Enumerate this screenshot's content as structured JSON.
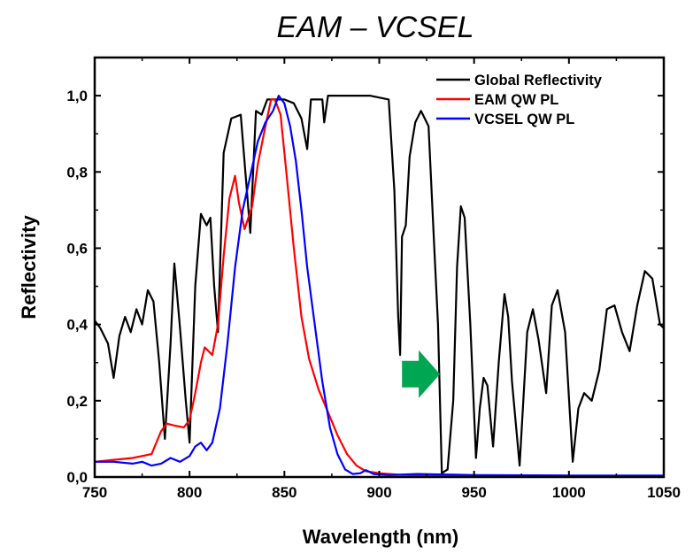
{
  "chart_data": {
    "type": "line",
    "title": "EAM – VCSEL",
    "xlabel": "Wavelength (nm)",
    "ylabel": "Reflectivity",
    "xlim": [
      750,
      1050
    ],
    "ylim": [
      0,
      1.1
    ],
    "x_ticks": [
      750,
      800,
      850,
      900,
      950,
      1000,
      1050
    ],
    "x_tick_labels": [
      "750",
      "800",
      "850",
      "900",
      "950",
      "1000",
      "1050"
    ],
    "y_ticks": [
      0,
      0.2,
      0.4,
      0.6,
      0.8,
      1.0
    ],
    "y_tick_labels": [
      "0,0",
      "0,2",
      "0,4",
      "0,6",
      "0,8",
      "1,0"
    ],
    "grid": false,
    "legend_position": "top-right",
    "annotation": {
      "type": "arrow",
      "direction": "right",
      "color": "#00a651",
      "x_from": 912,
      "x_to": 932,
      "y": 0.27
    },
    "series": [
      {
        "name": "Global Reflectivity",
        "color": "#000000",
        "x": [
          750,
          753,
          757,
          760,
          763,
          766,
          769,
          772,
          775,
          778,
          781,
          784,
          787,
          790,
          792,
          795,
          798,
          800,
          803,
          806,
          809,
          811,
          813,
          815,
          818,
          822,
          827,
          832,
          835,
          838,
          841,
          845,
          850,
          855,
          859,
          862,
          864,
          867,
          870,
          871,
          873,
          877,
          885,
          895,
          905,
          908,
          910,
          911,
          912,
          914,
          916,
          919,
          922,
          926,
          929,
          931,
          933,
          936,
          939,
          941,
          943,
          945,
          948,
          951,
          953,
          955,
          957,
          960,
          963,
          966,
          968,
          970,
          974,
          978,
          981,
          984,
          988,
          991,
          994,
          998,
          1002,
          1005,
          1008,
          1012,
          1016,
          1020,
          1024,
          1028,
          1032,
          1036,
          1040,
          1044,
          1048,
          1050
        ],
        "y": [
          0.41,
          0.39,
          0.35,
          0.26,
          0.37,
          0.42,
          0.38,
          0.44,
          0.4,
          0.49,
          0.46,
          0.3,
          0.1,
          0.35,
          0.56,
          0.39,
          0.2,
          0.09,
          0.5,
          0.69,
          0.66,
          0.68,
          0.5,
          0.38,
          0.85,
          0.94,
          0.95,
          0.64,
          0.96,
          0.95,
          0.99,
          0.99,
          0.99,
          0.98,
          0.94,
          0.86,
          0.99,
          0.99,
          0.99,
          0.93,
          1.0,
          1.0,
          1.0,
          1.0,
          0.99,
          0.75,
          0.42,
          0.32,
          0.63,
          0.66,
          0.84,
          0.93,
          0.96,
          0.92,
          0.6,
          0.4,
          0.01,
          0.02,
          0.2,
          0.55,
          0.71,
          0.68,
          0.4,
          0.05,
          0.18,
          0.26,
          0.24,
          0.08,
          0.3,
          0.48,
          0.42,
          0.25,
          0.03,
          0.38,
          0.44,
          0.36,
          0.22,
          0.45,
          0.49,
          0.38,
          0.04,
          0.18,
          0.22,
          0.2,
          0.28,
          0.44,
          0.45,
          0.38,
          0.33,
          0.45,
          0.54,
          0.52,
          0.4,
          0.39
        ]
      },
      {
        "name": "EAM QW PL",
        "color": "#ff0000",
        "x": [
          750,
          760,
          770,
          780,
          785,
          788,
          792,
          797,
          800,
          803,
          806,
          808,
          810,
          812,
          815,
          818,
          821,
          824,
          826,
          829,
          833,
          836,
          840,
          843,
          845,
          848,
          851,
          855,
          859,
          863,
          868,
          873,
          878,
          883,
          888,
          893,
          900,
          910,
          930,
          960,
          1000,
          1050
        ],
        "y": [
          0.04,
          0.045,
          0.05,
          0.06,
          0.12,
          0.14,
          0.135,
          0.13,
          0.15,
          0.22,
          0.3,
          0.34,
          0.33,
          0.32,
          0.4,
          0.58,
          0.73,
          0.79,
          0.72,
          0.65,
          0.71,
          0.82,
          0.92,
          0.99,
          0.99,
          0.95,
          0.8,
          0.6,
          0.42,
          0.31,
          0.23,
          0.17,
          0.11,
          0.06,
          0.03,
          0.015,
          0.01,
          0.006,
          0.003,
          0.002,
          0.002,
          0.002
        ]
      },
      {
        "name": "VCSEL QW PL",
        "color": "#0000ff",
        "x": [
          750,
          760,
          770,
          775,
          780,
          785,
          790,
          795,
          800,
          803,
          806,
          809,
          812,
          816,
          820,
          824,
          828,
          832,
          836,
          840,
          844,
          847,
          850,
          853,
          856,
          859,
          862,
          866,
          870,
          874,
          878,
          882,
          886,
          890,
          893,
          897,
          905,
          920,
          950,
          1000,
          1050
        ],
        "y": [
          0.04,
          0.04,
          0.035,
          0.04,
          0.03,
          0.035,
          0.05,
          0.04,
          0.055,
          0.08,
          0.09,
          0.07,
          0.09,
          0.18,
          0.35,
          0.55,
          0.7,
          0.79,
          0.88,
          0.93,
          0.96,
          1.0,
          0.98,
          0.92,
          0.83,
          0.7,
          0.55,
          0.4,
          0.25,
          0.13,
          0.06,
          0.02,
          0.008,
          0.01,
          0.018,
          0.008,
          0.005,
          0.008,
          0.005,
          0.004,
          0.004
        ]
      }
    ]
  }
}
